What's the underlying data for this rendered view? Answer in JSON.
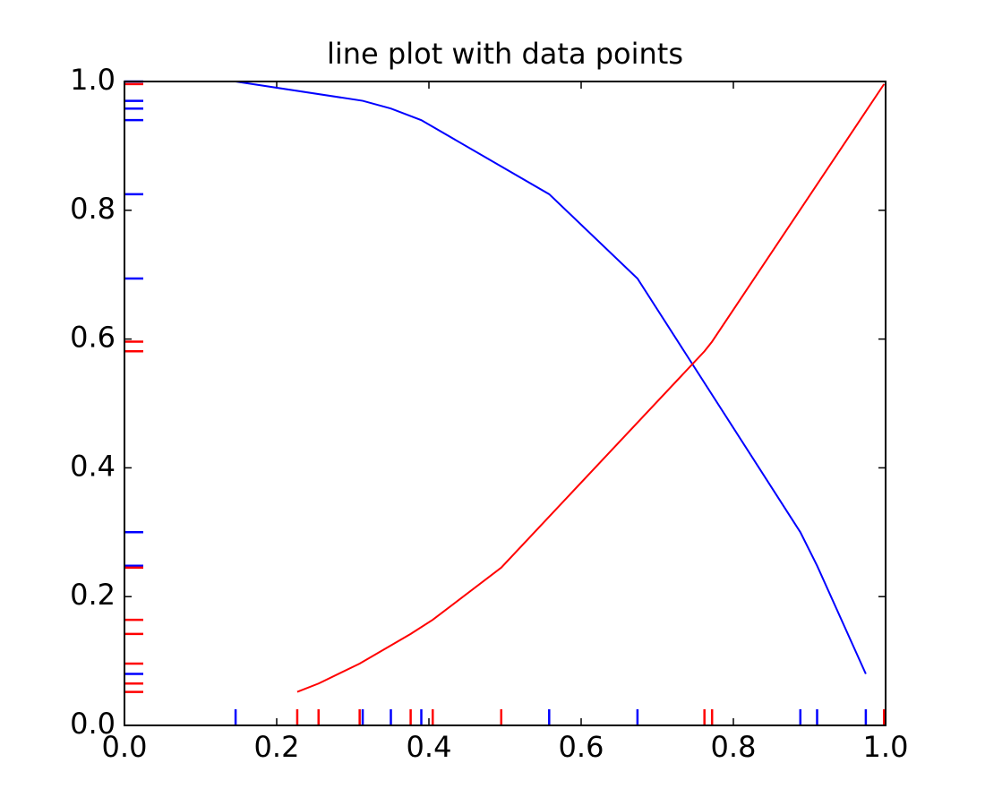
{
  "chart_data": {
    "type": "line",
    "title": "line plot with data points",
    "series": [
      {
        "color": "#0000ff",
        "x": [
          0.146,
          0.313,
          0.35,
          0.39,
          0.558,
          0.674,
          0.888,
          0.91,
          0.974
        ],
        "values": [
          1.0,
          0.97,
          0.958,
          0.94,
          0.825,
          0.694,
          0.3,
          0.248,
          0.08
        ]
      },
      {
        "color": "#ff0000",
        "x": [
          0.227,
          0.255,
          0.309,
          0.376,
          0.405,
          0.495,
          0.762,
          0.772,
          0.998
        ],
        "values": [
          0.052,
          0.065,
          0.096,
          0.142,
          0.164,
          0.245,
          0.581,
          0.596,
          0.996
        ]
      }
    ],
    "xlim": [
      0,
      1
    ],
    "ylim": [
      0,
      1
    ],
    "xticks": [
      {
        "value": 0,
        "label": "0.0"
      },
      0.2,
      0.4,
      0.6,
      0.8,
      {
        "value": 1,
        "label": "1.0"
      }
    ],
    "yticks": [
      {
        "value": 0,
        "label": "0.0"
      },
      0.2,
      0.4,
      0.6,
      0.8,
      {
        "value": 1,
        "label": "1.0"
      }
    ],
    "rug": true,
    "grid": false
  }
}
